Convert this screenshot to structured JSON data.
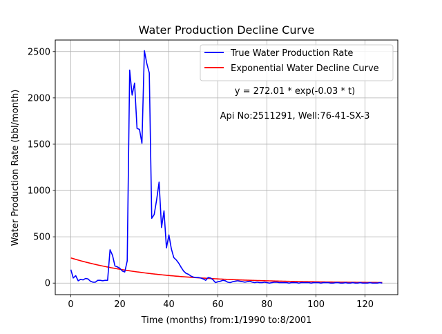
{
  "chart_data": {
    "type": "line",
    "title": "Water Production Decline Curve",
    "xlabel": "Time (months) from:1/1990 to:8/2001",
    "ylabel": "Water Production Rate (bbl/month)",
    "xlim": [
      -6.35,
      133.35
    ],
    "ylim": [
      -125,
      2625
    ],
    "xticks": [
      0,
      20,
      40,
      60,
      80,
      100,
      120
    ],
    "yticks": [
      0,
      500,
      1000,
      1500,
      2000,
      2500
    ],
    "grid": true,
    "legend_position": "top-right",
    "annotations": {
      "equation": "y = 272.01 * exp(-0.03 * t)",
      "well": "Api No:2511291, Well:76-41-SX-3"
    },
    "fit": {
      "a": 272.01,
      "b": 0.03,
      "t_start": 0,
      "t_end": 127
    },
    "series": [
      {
        "name": "True Water Production Rate",
        "color": "#0000ff",
        "x": [
          0,
          1,
          2,
          3,
          4,
          5,
          6,
          7,
          8,
          9,
          10,
          11,
          12,
          13,
          14,
          15,
          16,
          17,
          18,
          19,
          20,
          21,
          22,
          23,
          24,
          25,
          26,
          27,
          28,
          29,
          30,
          31,
          32,
          33,
          34,
          35,
          36,
          37,
          38,
          39,
          40,
          41,
          42,
          43,
          44,
          45,
          46,
          47,
          48,
          49,
          50,
          51,
          52,
          53,
          54,
          55,
          56,
          57,
          58,
          59,
          60,
          61,
          62,
          63,
          64,
          65,
          66,
          67,
          68,
          69,
          70,
          71,
          72,
          73,
          74,
          75,
          76,
          77,
          78,
          79,
          80,
          81,
          82,
          83,
          84,
          85,
          86,
          87,
          88,
          89,
          90,
          91,
          92,
          93,
          94,
          95,
          96,
          97,
          98,
          99,
          100,
          101,
          102,
          103,
          104,
          105,
          106,
          107,
          108,
          109,
          110,
          111,
          112,
          113,
          114,
          115,
          116,
          117,
          118,
          119,
          120,
          121,
          122,
          123,
          124,
          125,
          126,
          127
        ],
        "y": [
          145,
          55,
          80,
          25,
          40,
          35,
          50,
          45,
          20,
          10,
          10,
          30,
          30,
          25,
          30,
          30,
          360,
          300,
          185,
          175,
          160,
          130,
          120,
          240,
          2300,
          2030,
          2160,
          1670,
          1660,
          1510,
          2510,
          2370,
          2270,
          700,
          740,
          900,
          1090,
          600,
          780,
          380,
          520,
          370,
          275,
          250,
          215,
          170,
          130,
          105,
          95,
          75,
          65,
          60,
          60,
          55,
          45,
          30,
          60,
          55,
          35,
          5,
          15,
          20,
          30,
          25,
          10,
          5,
          15,
          20,
          25,
          20,
          15,
          10,
          15,
          20,
          10,
          5,
          10,
          5,
          5,
          10,
          5,
          0,
          5,
          10,
          10,
          5,
          5,
          5,
          5,
          0,
          5,
          5,
          5,
          0,
          5,
          5,
          5,
          5,
          0,
          5,
          5,
          5,
          0,
          5,
          5,
          5,
          0,
          0,
          5,
          5,
          0,
          0,
          5,
          0,
          0,
          5,
          0,
          0,
          5,
          0,
          0,
          0,
          5,
          0,
          0,
          0,
          5,
          0
        ]
      },
      {
        "name": "Exponential Water Decline Curve",
        "color": "#ff0000"
      }
    ]
  }
}
